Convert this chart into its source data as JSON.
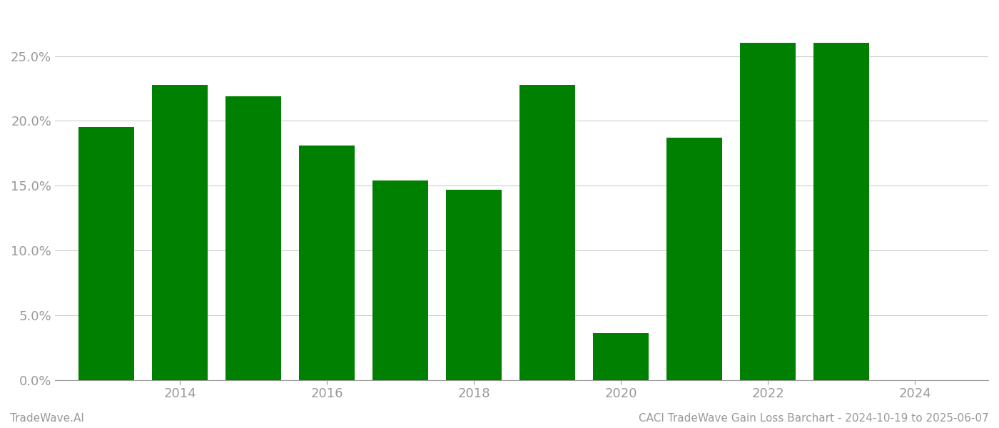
{
  "years": [
    2013,
    2014,
    2015,
    2016,
    2017,
    2018,
    2019,
    2020,
    2021,
    2022,
    2023
  ],
  "values": [
    0.195,
    0.228,
    0.219,
    0.181,
    0.154,
    0.147,
    0.228,
    0.036,
    0.187,
    0.26,
    0.26
  ],
  "bar_color": "#008000",
  "background_color": "#ffffff",
  "grid_color": "#cccccc",
  "axis_color": "#999999",
  "tick_color": "#999999",
  "footer_left": "TradeWave.AI",
  "footer_right": "CACI TradeWave Gain Loss Barchart - 2024-10-19 to 2025-06-07",
  "ylim": [
    0,
    0.285
  ],
  "yticks": [
    0.0,
    0.05,
    0.1,
    0.15,
    0.2,
    0.25
  ],
  "xtick_labels": [
    "2014",
    "2016",
    "2018",
    "2020",
    "2022",
    "2024"
  ],
  "xtick_positions": [
    2014,
    2016,
    2018,
    2020,
    2022,
    2024
  ],
  "bar_width": 0.75,
  "figsize": [
    14.0,
    6.0
  ],
  "dpi": 100,
  "xlim": [
    2012.3,
    2025.0
  ]
}
